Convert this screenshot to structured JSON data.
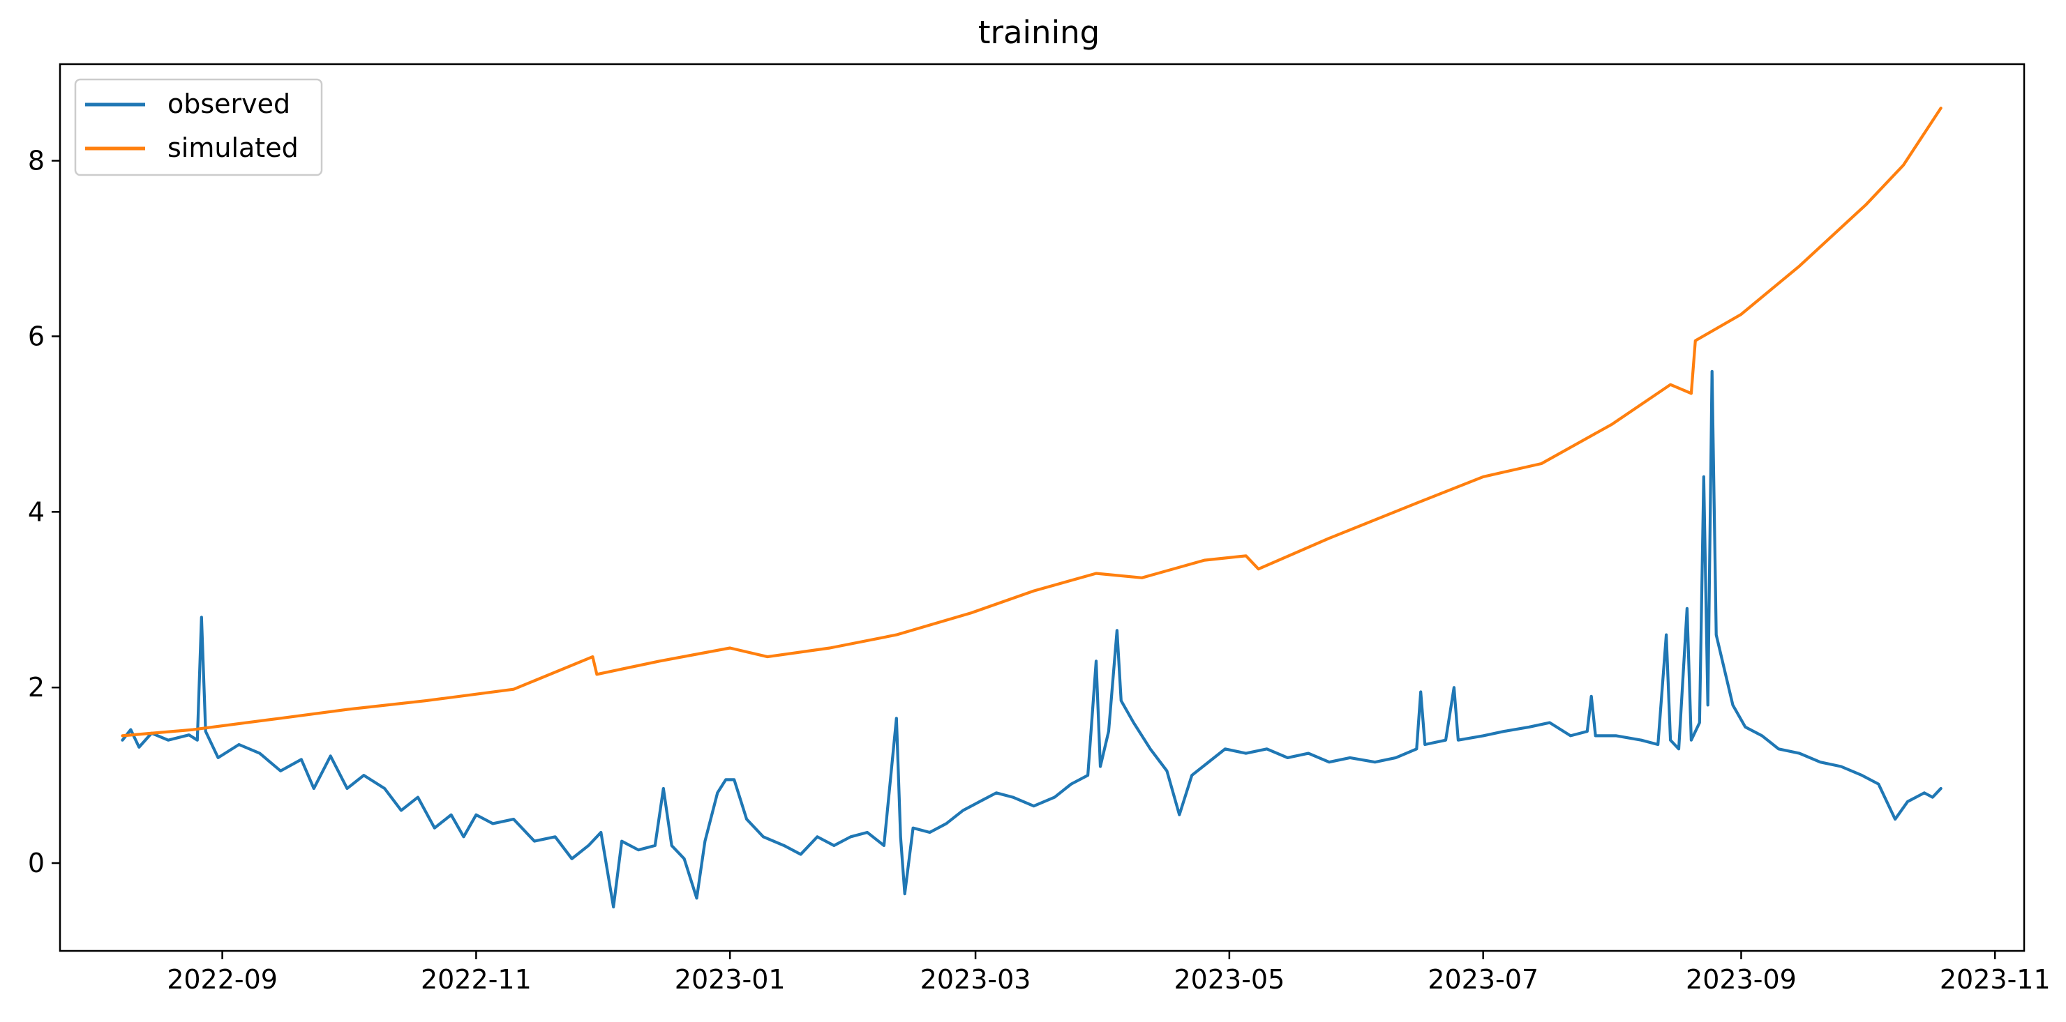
{
  "chart_data": {
    "type": "line",
    "title": "training",
    "xlabel": "",
    "ylabel": "",
    "x_range": [
      "2022-07-24",
      "2023-11-08"
    ],
    "ylim": [
      -1,
      9.1
    ],
    "x_ticks": [
      "2022-09",
      "2022-11",
      "2023-01",
      "2023-03",
      "2023-05",
      "2023-07",
      "2023-09",
      "2023-11"
    ],
    "y_ticks": [
      0,
      2,
      4,
      6,
      8
    ],
    "grid": false,
    "legend_position": "top-left",
    "series": [
      {
        "name": "observed",
        "color": "#1f77b4",
        "points": [
          [
            "2022-08-08",
            1.4
          ],
          [
            "2022-08-10",
            1.52
          ],
          [
            "2022-08-12",
            1.32
          ],
          [
            "2022-08-15",
            1.48
          ],
          [
            "2022-08-19",
            1.4
          ],
          [
            "2022-08-24",
            1.46
          ],
          [
            "2022-08-26",
            1.4
          ],
          [
            "2022-08-27",
            2.8
          ],
          [
            "2022-08-28",
            1.5
          ],
          [
            "2022-08-31",
            1.2
          ],
          [
            "2022-09-05",
            1.35
          ],
          [
            "2022-09-10",
            1.25
          ],
          [
            "2022-09-15",
            1.05
          ],
          [
            "2022-09-20",
            1.18
          ],
          [
            "2022-09-23",
            0.85
          ],
          [
            "2022-09-27",
            1.22
          ],
          [
            "2022-10-01",
            0.85
          ],
          [
            "2022-10-05",
            1.0
          ],
          [
            "2022-10-10",
            0.85
          ],
          [
            "2022-10-14",
            0.6
          ],
          [
            "2022-10-18",
            0.75
          ],
          [
            "2022-10-22",
            0.4
          ],
          [
            "2022-10-26",
            0.55
          ],
          [
            "2022-10-29",
            0.3
          ],
          [
            "2022-11-01",
            0.55
          ],
          [
            "2022-11-05",
            0.45
          ],
          [
            "2022-11-10",
            0.5
          ],
          [
            "2022-11-15",
            0.25
          ],
          [
            "2022-11-20",
            0.3
          ],
          [
            "2022-11-24",
            0.05
          ],
          [
            "2022-11-28",
            0.2
          ],
          [
            "2022-12-01",
            0.35
          ],
          [
            "2022-12-04",
            -0.5
          ],
          [
            "2022-12-06",
            0.25
          ],
          [
            "2022-12-10",
            0.15
          ],
          [
            "2022-12-14",
            0.2
          ],
          [
            "2022-12-16",
            0.85
          ],
          [
            "2022-12-18",
            0.2
          ],
          [
            "2022-12-21",
            0.05
          ],
          [
            "2022-12-24",
            -0.4
          ],
          [
            "2022-12-26",
            0.25
          ],
          [
            "2022-12-29",
            0.8
          ],
          [
            "2022-12-31",
            0.95
          ],
          [
            "2023-01-02",
            0.95
          ],
          [
            "2023-01-05",
            0.5
          ],
          [
            "2023-01-09",
            0.3
          ],
          [
            "2023-01-14",
            0.2
          ],
          [
            "2023-01-18",
            0.1
          ],
          [
            "2023-01-22",
            0.3
          ],
          [
            "2023-01-26",
            0.2
          ],
          [
            "2023-01-30",
            0.3
          ],
          [
            "2023-02-03",
            0.35
          ],
          [
            "2023-02-07",
            0.2
          ],
          [
            "2023-02-10",
            1.65
          ],
          [
            "2023-02-11",
            0.3
          ],
          [
            "2023-02-12",
            -0.35
          ],
          [
            "2023-02-14",
            0.4
          ],
          [
            "2023-02-18",
            0.35
          ],
          [
            "2023-02-22",
            0.45
          ],
          [
            "2023-02-26",
            0.6
          ],
          [
            "2023-03-02",
            0.7
          ],
          [
            "2023-03-06",
            0.8
          ],
          [
            "2023-03-10",
            0.75
          ],
          [
            "2023-03-15",
            0.65
          ],
          [
            "2023-03-20",
            0.75
          ],
          [
            "2023-03-24",
            0.9
          ],
          [
            "2023-03-28",
            1.0
          ],
          [
            "2023-03-30",
            2.3
          ],
          [
            "2023-03-31",
            1.1
          ],
          [
            "2023-04-02",
            1.5
          ],
          [
            "2023-04-04",
            2.65
          ],
          [
            "2023-04-05",
            1.85
          ],
          [
            "2023-04-08",
            1.6
          ],
          [
            "2023-04-12",
            1.3
          ],
          [
            "2023-04-16",
            1.05
          ],
          [
            "2023-04-19",
            0.55
          ],
          [
            "2023-04-22",
            1.0
          ],
          [
            "2023-04-26",
            1.15
          ],
          [
            "2023-04-30",
            1.3
          ],
          [
            "2023-05-05",
            1.25
          ],
          [
            "2023-05-10",
            1.3
          ],
          [
            "2023-05-15",
            1.2
          ],
          [
            "2023-05-20",
            1.25
          ],
          [
            "2023-05-25",
            1.15
          ],
          [
            "2023-05-30",
            1.2
          ],
          [
            "2023-06-05",
            1.15
          ],
          [
            "2023-06-10",
            1.2
          ],
          [
            "2023-06-15",
            1.3
          ],
          [
            "2023-06-16",
            1.95
          ],
          [
            "2023-06-17",
            1.35
          ],
          [
            "2023-06-22",
            1.4
          ],
          [
            "2023-06-24",
            2.0
          ],
          [
            "2023-06-25",
            1.4
          ],
          [
            "2023-07-01",
            1.45
          ],
          [
            "2023-07-06",
            1.5
          ],
          [
            "2023-07-12",
            1.55
          ],
          [
            "2023-07-17",
            1.6
          ],
          [
            "2023-07-22",
            1.45
          ],
          [
            "2023-07-26",
            1.5
          ],
          [
            "2023-07-27",
            1.9
          ],
          [
            "2023-07-28",
            1.45
          ],
          [
            "2023-08-02",
            1.45
          ],
          [
            "2023-08-08",
            1.4
          ],
          [
            "2023-08-12",
            1.35
          ],
          [
            "2023-08-14",
            2.6
          ],
          [
            "2023-08-15",
            1.4
          ],
          [
            "2023-08-17",
            1.3
          ],
          [
            "2023-08-19",
            2.9
          ],
          [
            "2023-08-20",
            1.4
          ],
          [
            "2023-08-22",
            1.6
          ],
          [
            "2023-08-23",
            4.4
          ],
          [
            "2023-08-24",
            1.8
          ],
          [
            "2023-08-25",
            5.6
          ],
          [
            "2023-08-26",
            2.6
          ],
          [
            "2023-08-28",
            2.2
          ],
          [
            "2023-08-30",
            1.8
          ],
          [
            "2023-09-02",
            1.55
          ],
          [
            "2023-09-06",
            1.45
          ],
          [
            "2023-09-10",
            1.3
          ],
          [
            "2023-09-15",
            1.25
          ],
          [
            "2023-09-20",
            1.15
          ],
          [
            "2023-09-25",
            1.1
          ],
          [
            "2023-09-30",
            1.0
          ],
          [
            "2023-10-04",
            0.9
          ],
          [
            "2023-10-08",
            0.5
          ],
          [
            "2023-10-11",
            0.7
          ],
          [
            "2023-10-15",
            0.8
          ],
          [
            "2023-10-17",
            0.75
          ],
          [
            "2023-10-19",
            0.85
          ]
        ]
      },
      {
        "name": "simulated",
        "color": "#ff7f0e",
        "points": [
          [
            "2022-08-08",
            1.45
          ],
          [
            "2022-08-25",
            1.52
          ],
          [
            "2022-09-15",
            1.65
          ],
          [
            "2022-10-01",
            1.75
          ],
          [
            "2022-10-20",
            1.85
          ],
          [
            "2022-11-10",
            1.98
          ],
          [
            "2022-11-29",
            2.35
          ],
          [
            "2022-11-30",
            2.15
          ],
          [
            "2022-12-15",
            2.3
          ],
          [
            "2023-01-01",
            2.45
          ],
          [
            "2023-01-10",
            2.35
          ],
          [
            "2023-01-25",
            2.45
          ],
          [
            "2023-02-10",
            2.6
          ],
          [
            "2023-02-28",
            2.85
          ],
          [
            "2023-03-15",
            3.1
          ],
          [
            "2023-03-30",
            3.3
          ],
          [
            "2023-04-10",
            3.25
          ],
          [
            "2023-04-25",
            3.45
          ],
          [
            "2023-05-05",
            3.5
          ],
          [
            "2023-05-08",
            3.35
          ],
          [
            "2023-05-25",
            3.7
          ],
          [
            "2023-06-15",
            4.1
          ],
          [
            "2023-07-01",
            4.4
          ],
          [
            "2023-07-15",
            4.55
          ],
          [
            "2023-08-01",
            5.0
          ],
          [
            "2023-08-15",
            5.45
          ],
          [
            "2023-08-20",
            5.35
          ],
          [
            "2023-08-21",
            5.95
          ],
          [
            "2023-09-01",
            6.25
          ],
          [
            "2023-09-15",
            6.8
          ],
          [
            "2023-10-01",
            7.5
          ],
          [
            "2023-10-10",
            7.95
          ],
          [
            "2023-10-19",
            8.6
          ]
        ]
      }
    ]
  }
}
